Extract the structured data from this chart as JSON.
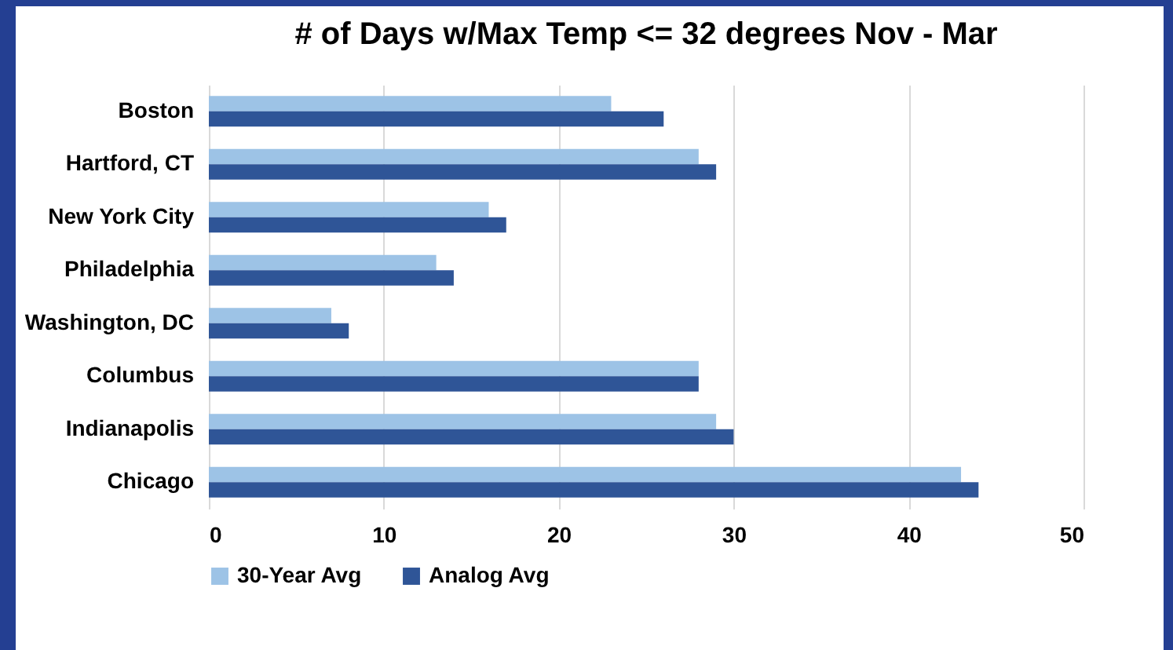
{
  "chart_data": {
    "type": "bar",
    "orientation": "horizontal",
    "title": "# of Days w/Max Temp <= 32 degrees Nov - Mar",
    "categories": [
      "Boston",
      "Hartford, CT",
      "New York City",
      "Philadelphia",
      "Washington, DC",
      "Columbus",
      "Indianapolis",
      "Chicago"
    ],
    "series": [
      {
        "name": "30-Year Avg",
        "color": "#9dc3e6",
        "values": [
          23,
          28,
          16,
          13,
          7,
          28,
          29,
          43
        ]
      },
      {
        "name": "Analog Avg",
        "color": "#2f5597",
        "values": [
          26,
          29,
          17,
          14,
          8,
          28,
          30,
          44
        ]
      }
    ],
    "xlim": [
      0,
      50
    ],
    "xticks": [
      0,
      10,
      20,
      30,
      40,
      50
    ],
    "grid": "x",
    "legend": "bottom"
  }
}
